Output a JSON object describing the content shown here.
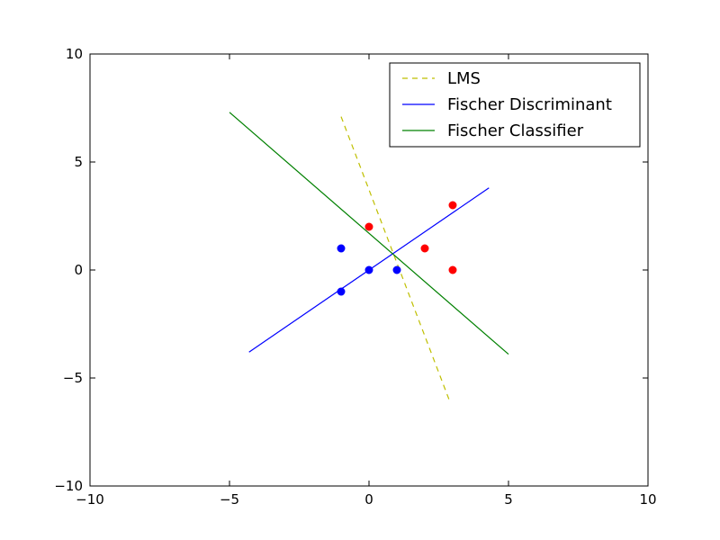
{
  "chart_data": {
    "type": "scatter",
    "xlim": [
      -10,
      10
    ],
    "ylim": [
      -10,
      10
    ],
    "xticks": [
      "−10",
      "−5",
      "0",
      "5",
      "10"
    ],
    "yticks": [
      "−10",
      "−5",
      "0",
      "5",
      "10"
    ],
    "grid": false,
    "legend_position": "top-right",
    "points": [
      {
        "color": "#0000ff",
        "data": [
          [
            -1,
            1
          ],
          [
            -1,
            -1
          ],
          [
            0,
            0
          ],
          [
            1,
            0
          ]
        ]
      },
      {
        "color": "#ff0000",
        "data": [
          [
            0,
            2
          ],
          [
            2,
            1
          ],
          [
            3,
            3
          ],
          [
            3,
            0
          ]
        ]
      }
    ],
    "series": [
      {
        "name": "LMS",
        "color": "#bfbf00",
        "style": "dashed",
        "x": [
          -1,
          2.9
        ],
        "y": [
          7.1,
          -6.1
        ]
      },
      {
        "name": "Fischer Discriminant",
        "color": "#0000ff",
        "style": "solid",
        "x": [
          -4.3,
          4.3
        ],
        "y": [
          -3.8,
          3.8
        ]
      },
      {
        "name": "Fischer Classifier",
        "color": "#008000",
        "style": "solid",
        "x": [
          -5,
          5
        ],
        "y": [
          7.3,
          -3.9
        ]
      }
    ]
  }
}
